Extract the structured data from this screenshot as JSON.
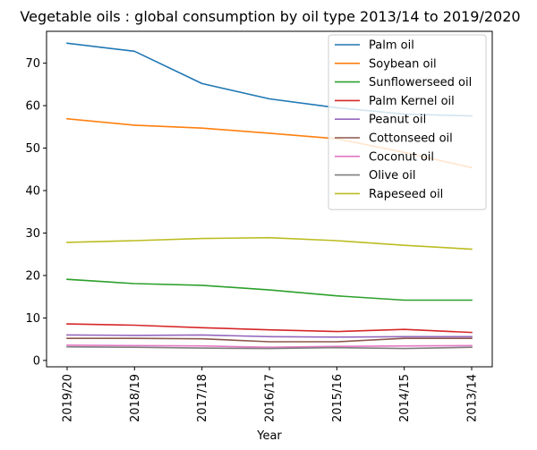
{
  "chart_data": {
    "type": "line",
    "title": "Vegetable oils : global consumption by oil type 2013/14 to 2019/2020",
    "xlabel": "Year",
    "ylabel": "",
    "categories": [
      "2019/20",
      "2018/19",
      "2017/18",
      "2016/17",
      "2015/16",
      "2014/15",
      "2013/14"
    ],
    "ylim": [
      -1.5,
      77.5
    ],
    "yticks": [
      0,
      10,
      20,
      30,
      40,
      50,
      60,
      70
    ],
    "grid": false,
    "legend": "top-right",
    "series": [
      {
        "name": "Palm oil",
        "color": "#1f77b4",
        "values": [
          74.7,
          72.8,
          65.2,
          61.6,
          59.5,
          58.0,
          57.6
        ]
      },
      {
        "name": "Soybean oil",
        "color": "#ff7f0e",
        "values": [
          56.9,
          55.4,
          54.7,
          53.5,
          52.2,
          49.0,
          45.4
        ]
      },
      {
        "name": "Sunflowerseed oil",
        "color": "#2ca02c",
        "values": [
          19.1,
          18.1,
          17.7,
          16.6,
          15.2,
          14.2,
          14.2
        ]
      },
      {
        "name": "Palm Kernel oil",
        "color": "#d62728",
        "values": [
          8.6,
          8.3,
          7.7,
          7.2,
          6.8,
          7.3,
          6.6
        ]
      },
      {
        "name": "Peanut oil",
        "color": "#9467bd",
        "values": [
          6.0,
          5.9,
          6.0,
          5.6,
          5.5,
          5.6,
          5.6
        ]
      },
      {
        "name": "Cottonseed oil",
        "color": "#8c564b",
        "values": [
          5.2,
          5.2,
          5.1,
          4.4,
          4.4,
          5.2,
          5.2
        ]
      },
      {
        "name": "Coconut oil",
        "color": "#e377c2",
        "values": [
          3.6,
          3.5,
          3.4,
          3.1,
          3.3,
          3.4,
          3.5
        ]
      },
      {
        "name": "Olive oil",
        "color": "#7f7f7f",
        "values": [
          3.2,
          3.1,
          2.9,
          2.8,
          3.0,
          2.8,
          3.1
        ]
      },
      {
        "name": "Rapeseed oil",
        "color": "#bcbd22",
        "values": [
          27.8,
          28.2,
          28.7,
          28.9,
          28.2,
          27.1,
          26.2
        ]
      }
    ]
  }
}
